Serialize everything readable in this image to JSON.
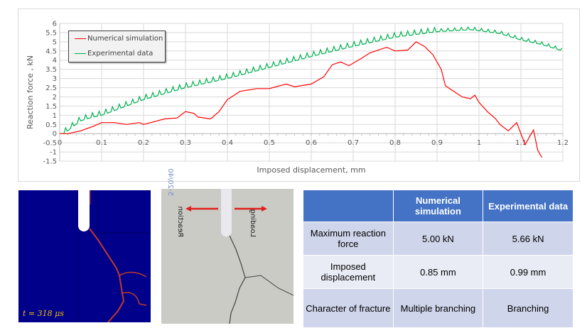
{
  "chart_data": {
    "type": "line",
    "xlabel": "Imposed displacement, mm",
    "ylabel": "Reaction force , kN",
    "xlim": [
      0,
      1.2
    ],
    "ylim": [
      -1.5,
      6
    ],
    "xticks": [
      "0",
      "0.1",
      "0.2",
      "0.3",
      "0.4",
      "0.5",
      "0.6",
      "0.7",
      "0.8",
      "0.9",
      "1",
      "1.1",
      "1.2"
    ],
    "yticks": [
      "6",
      "5.5",
      "5",
      "4.5",
      "4",
      "3.5",
      "3",
      "2.5",
      "2",
      "1.5",
      "1",
      "0.5",
      "0",
      "-0.5",
      "-1",
      "-1.5"
    ],
    "grid": true,
    "legend_position": "top-left",
    "series": [
      {
        "name": "Numerical simulation",
        "color": "#ff0000",
        "points": [
          [
            0,
            0
          ],
          [
            0.02,
            0
          ],
          [
            0.05,
            0.15
          ],
          [
            0.08,
            0.4
          ],
          [
            0.1,
            0.6
          ],
          [
            0.13,
            0.6
          ],
          [
            0.16,
            0.5
          ],
          [
            0.19,
            0.6
          ],
          [
            0.2,
            0.5
          ],
          [
            0.25,
            0.8
          ],
          [
            0.28,
            0.85
          ],
          [
            0.3,
            1.2
          ],
          [
            0.32,
            1.1
          ],
          [
            0.33,
            0.9
          ],
          [
            0.36,
            0.8
          ],
          [
            0.38,
            1.2
          ],
          [
            0.4,
            1.85
          ],
          [
            0.43,
            2.3
          ],
          [
            0.47,
            2.45
          ],
          [
            0.5,
            2.45
          ],
          [
            0.54,
            2.7
          ],
          [
            0.56,
            2.55
          ],
          [
            0.6,
            2.7
          ],
          [
            0.63,
            3.1
          ],
          [
            0.65,
            3.75
          ],
          [
            0.67,
            3.9
          ],
          [
            0.69,
            3.7
          ],
          [
            0.72,
            4.1
          ],
          [
            0.74,
            4.4
          ],
          [
            0.78,
            4.7
          ],
          [
            0.8,
            4.5
          ],
          [
            0.83,
            4.55
          ],
          [
            0.85,
            5.0
          ],
          [
            0.87,
            4.75
          ],
          [
            0.89,
            4.3
          ],
          [
            0.91,
            3.5
          ],
          [
            0.92,
            2.6
          ],
          [
            0.94,
            2.3
          ],
          [
            0.96,
            2.0
          ],
          [
            0.98,
            1.9
          ],
          [
            0.99,
            2.1
          ],
          [
            1.0,
            1.7
          ],
          [
            1.02,
            1.2
          ],
          [
            1.04,
            0.8
          ],
          [
            1.05,
            0.5
          ],
          [
            1.07,
            0.15
          ],
          [
            1.09,
            0.6
          ],
          [
            1.1,
            0.0
          ],
          [
            1.11,
            -0.6
          ],
          [
            1.13,
            0.2
          ],
          [
            1.14,
            -0.9
          ],
          [
            1.15,
            -1.3
          ]
        ]
      },
      {
        "name": "Experimental data",
        "color": "#00b050",
        "points": [
          [
            0.01,
            0
          ],
          [
            0.05,
            0.7
          ],
          [
            0.08,
            0.9
          ],
          [
            0.1,
            1.0
          ],
          [
            0.2,
            1.85
          ],
          [
            0.3,
            2.5
          ],
          [
            0.4,
            3.0
          ],
          [
            0.5,
            3.6
          ],
          [
            0.6,
            4.2
          ],
          [
            0.7,
            4.75
          ],
          [
            0.8,
            5.25
          ],
          [
            0.9,
            5.55
          ],
          [
            0.98,
            5.66
          ],
          [
            1.05,
            5.45
          ],
          [
            1.1,
            5.1
          ],
          [
            1.15,
            4.85
          ],
          [
            1.2,
            4.5
          ]
        ]
      }
    ]
  },
  "simulation": {
    "time_label": "t = 318 μs"
  },
  "photo": {
    "left_label": "Reaction",
    "right_label": "Loading",
    "specimen_mark": "5-20/40"
  },
  "table": {
    "headers": [
      "",
      "Numerical simulation",
      "Experimental data"
    ],
    "rows": [
      [
        "Maximum reaction force",
        "5.00 kN",
        "5.66 kN"
      ],
      [
        "Imposed displacement",
        "0.85 mm",
        "0.99 mm"
      ],
      [
        "Character of fracture",
        "Multiple branching",
        "Branching"
      ]
    ]
  }
}
